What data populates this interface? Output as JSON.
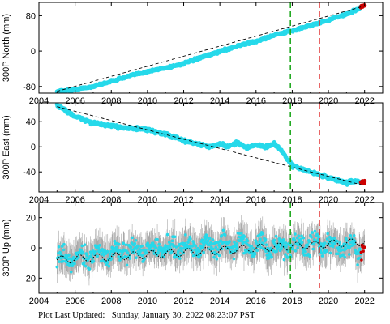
{
  "footer": {
    "text": "Plot Last Updated:   Sunday, January 30, 2022 08:23:07 PST"
  },
  "colors": {
    "observation": "#26d9ea",
    "error_bar": "#a8a8a8",
    "model": "#000000",
    "recent": "#cc0000",
    "green_line": "#22aa22",
    "red_line": "#dd2222"
  },
  "chart_data": [
    {
      "type": "scatter",
      "ylabel": "300P North (mm)",
      "xlim": [
        2004,
        2023
      ],
      "ylim": [
        -95,
        110
      ],
      "xticks": [
        2004,
        2006,
        2008,
        2010,
        2012,
        2014,
        2016,
        2018,
        2020,
        2022
      ],
      "yticks": [
        -80,
        0,
        80
      ],
      "vlines": [
        {
          "x": 2017.9,
          "color": "green"
        },
        {
          "x": 2019.5,
          "color": "red"
        }
      ],
      "series": [
        {
          "role": "observations",
          "x": [
            2005,
            2006,
            2007,
            2008,
            2009,
            2010,
            2011,
            2012,
            2013,
            2014,
            2015,
            2016,
            2017,
            2018,
            2019,
            2020,
            2021,
            2021.5,
            2022
          ],
          "y": [
            -91,
            -87,
            -80,
            -68,
            -56,
            -46,
            -38,
            -28,
            -14,
            -1,
            12,
            22,
            36,
            46,
            58,
            70,
            84,
            92,
            104
          ]
        },
        {
          "role": "model",
          "x": [
            2005,
            2022
          ],
          "y": [
            -91,
            102
          ]
        }
      ]
    },
    {
      "type": "scatter",
      "ylabel": "300P East (mm)",
      "xlim": [
        2004,
        2023
      ],
      "ylim": [
        -72,
        70
      ],
      "xticks": [
        2004,
        2006,
        2008,
        2010,
        2012,
        2014,
        2016,
        2018,
        2020,
        2022
      ],
      "yticks": [
        -40,
        0,
        40
      ],
      "vlines": [
        {
          "x": 2017.9,
          "color": "green"
        },
        {
          "x": 2019.5,
          "color": "red"
        }
      ],
      "series": [
        {
          "role": "observations",
          "x": [
            2005,
            2005.5,
            2006,
            2007,
            2008,
            2009,
            2010,
            2011,
            2012,
            2013,
            2013.5,
            2014,
            2014.5,
            2015,
            2015.5,
            2016,
            2016.5,
            2017,
            2017.5,
            2018,
            2019,
            2020,
            2020.5,
            2021,
            2021.5,
            2022
          ],
          "y": [
            66,
            58,
            48,
            38,
            33,
            30,
            27,
            20,
            10,
            3,
            0,
            4,
            0,
            7,
            -2,
            4,
            -1,
            6,
            -10,
            -30,
            -40,
            -49,
            -53,
            -58,
            -54,
            -57
          ]
        },
        {
          "role": "model",
          "x": [
            2005,
            2022
          ],
          "y": [
            64,
            -62
          ]
        }
      ]
    },
    {
      "type": "scatter",
      "ylabel": "300P Up (mm)",
      "xlim": [
        2004,
        2023
      ],
      "ylim": [
        -30,
        30
      ],
      "xticks": [
        2004,
        2006,
        2008,
        2010,
        2012,
        2014,
        2016,
        2018,
        2020,
        2022
      ],
      "yticks": [
        -20,
        0,
        20
      ],
      "vlines": [
        {
          "x": 2017.9,
          "color": "green"
        },
        {
          "x": 2019.5,
          "color": "red"
        }
      ],
      "series": [
        {
          "role": "observations",
          "x": [
            2005,
            2007,
            2009,
            2011,
            2013,
            2015,
            2017,
            2019,
            2021,
            2022
          ],
          "y": [
            -8,
            -5,
            -2,
            0,
            1,
            3,
            0,
            2,
            1,
            -1
          ]
        },
        {
          "role": "model",
          "seasonal_amplitude": 2.5,
          "x": [
            2005,
            2022
          ],
          "y": [
            -8,
            4
          ]
        }
      ]
    }
  ]
}
